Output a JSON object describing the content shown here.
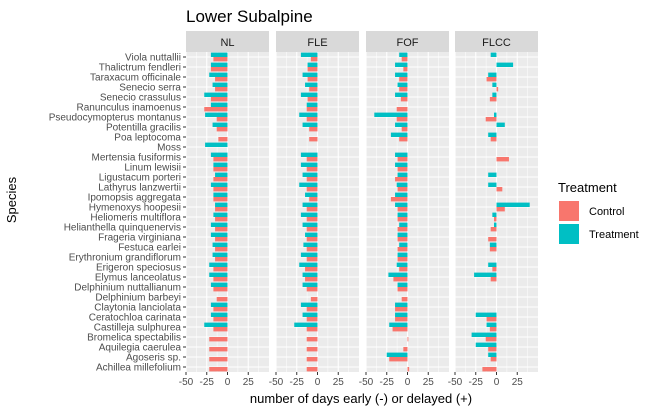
{
  "chart_data": {
    "type": "bar",
    "orientation": "horizontal",
    "title": "Lower Subalpine",
    "xlabel": "number of days early (-) or delayed (+)",
    "ylabel": "Species",
    "xlim": [
      -50,
      50
    ],
    "x_ticks": [
      "-50",
      "-25",
      "0",
      "25"
    ],
    "grid": true,
    "legend_position": "right",
    "legend_title": "Treatment",
    "colors": {
      "Control": "#F8766D",
      "Treatment": "#00BFC4",
      "panel": "#EBEBEB",
      "strip": "#D9D9D9",
      "grid": "#FFFFFF"
    },
    "panels": [
      "NL",
      "FLE",
      "FOF",
      "FLCC"
    ],
    "categories": [
      "Viola nuttallii",
      "Thalictrum fendleri",
      "Taraxacum officinale",
      "Senecio serra",
      "Senecio crassulus",
      "Ranunculus inamoenus",
      "Pseudocymopterus montanus",
      "Potentilla gracilis",
      "Poa leptocoma",
      "Moss",
      "Mertensia fusiformis",
      "Linum lewisii",
      "Ligustacum porteri",
      "Lathyrus lanzwertii",
      "Ipomopsis aggregata",
      "Hymenoxys hoopesii",
      "Heliomeris multiflora",
      "Helianthella quinquenervis",
      "Frageria virginiana",
      "Festuca earlei",
      "Erythronium grandiflorum",
      "Erigeron speciosus",
      "Elymus lanceolatus",
      "Delphinium nuttallianum",
      "Delphinium barbeyi",
      "Claytonia lanciolata",
      "Ceratochloa carinata",
      "Castilleja sulphurea",
      "Bromelica spectabilis",
      "Aquilegia caerulea",
      "Agoseris sp.",
      "Achillea millefolium"
    ],
    "series": [
      {
        "name": "Control",
        "panels": {
          "NL": [
            -17,
            -20,
            -15,
            -15,
            -20,
            -28,
            -13,
            -13,
            -11,
            null,
            -17,
            -17,
            -17,
            -17,
            -17,
            -15,
            -15,
            -15,
            -15,
            -15,
            -15,
            -17,
            -17,
            -17,
            -13,
            -17,
            -17,
            -17,
            -22,
            -22,
            -22,
            -22
          ],
          "FLE": [
            -8,
            -12,
            -12,
            -10,
            -12,
            -13,
            -13,
            -10,
            -10,
            null,
            -13,
            -13,
            -13,
            -13,
            -10,
            -13,
            -13,
            -13,
            -13,
            -13,
            -13,
            -15,
            -15,
            -13,
            -8,
            -13,
            -13,
            -13,
            -13,
            -13,
            -13,
            -13
          ],
          "FOF": [
            -7,
            -5,
            -10,
            -10,
            -8,
            -13,
            -13,
            -7,
            -10,
            null,
            -12,
            -12,
            -15,
            -12,
            -20,
            -12,
            -12,
            -12,
            -12,
            -12,
            -12,
            -10,
            -17,
            -12,
            -7,
            -15,
            -15,
            -18,
            1,
            -5,
            -22,
            2
          ],
          "FLCC": [
            null,
            null,
            -12,
            2,
            -8,
            null,
            -13,
            null,
            -7,
            null,
            15,
            null,
            null,
            7,
            null,
            10,
            -3,
            -7,
            -10,
            -8,
            null,
            -5,
            -7,
            null,
            null,
            null,
            -12,
            -8,
            -13,
            -10,
            -7,
            -17
          ]
        }
      },
      {
        "name": "Treatment",
        "panels": {
          "NL": [
            -20,
            -20,
            -22,
            -18,
            -28,
            -20,
            -27,
            -18,
            null,
            -27,
            -20,
            -17,
            -15,
            -20,
            -17,
            -15,
            -17,
            -20,
            -20,
            -18,
            -18,
            -22,
            -22,
            -20,
            null,
            -20,
            -20,
            -28,
            null,
            null,
            null,
            null
          ],
          "FLE": [
            -20,
            -12,
            -18,
            -15,
            -20,
            -13,
            -22,
            -18,
            null,
            null,
            -20,
            -20,
            -18,
            -22,
            -15,
            -18,
            -20,
            -18,
            -15,
            -17,
            -20,
            -22,
            -18,
            -18,
            null,
            -20,
            -18,
            -28,
            null,
            null,
            null,
            null
          ],
          "FOF": [
            -10,
            -15,
            -15,
            -12,
            -15,
            null,
            -40,
            -15,
            -20,
            null,
            -15,
            -15,
            -12,
            -13,
            -15,
            -15,
            -12,
            -10,
            -12,
            -10,
            -12,
            -13,
            -23,
            -12,
            null,
            -15,
            -15,
            -22,
            null,
            null,
            -25,
            null
          ],
          "FLCC": [
            -7,
            20,
            -10,
            -5,
            -5,
            null,
            -3,
            10,
            -10,
            null,
            null,
            null,
            -10,
            -10,
            null,
            40,
            -5,
            -3,
            null,
            -8,
            null,
            -10,
            -27,
            null,
            null,
            null,
            -25,
            -12,
            -30,
            -25,
            -10,
            null
          ]
        }
      }
    ]
  }
}
